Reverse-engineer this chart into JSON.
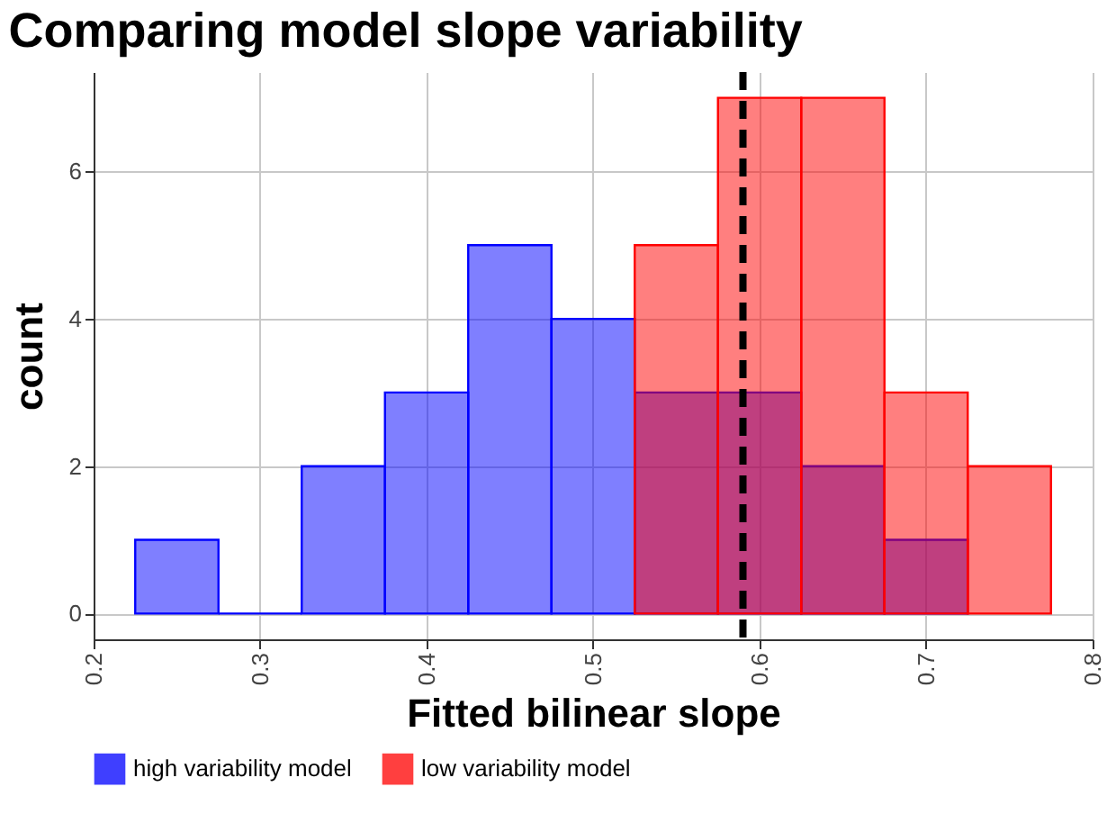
{
  "chart_data": {
    "type": "histogram",
    "title": "Comparing model slope variability",
    "xlabel": "Fitted bilinear slope",
    "ylabel": "count",
    "series": [
      {
        "name": "high variability model",
        "color": "#0000ff",
        "values": [
          1,
          0,
          2,
          3,
          5,
          4,
          3,
          3,
          2,
          1,
          null
        ]
      },
      {
        "name": "low variability model",
        "color": "#ff0000",
        "values": [
          null,
          null,
          null,
          null,
          null,
          null,
          5,
          7,
          7,
          3,
          2
        ]
      }
    ],
    "bins": [
      0.225,
      0.275,
      0.325,
      0.375,
      0.425,
      0.475,
      0.525,
      0.575,
      0.625,
      0.675,
      0.725,
      0.775
    ],
    "xlim": [
      0.2,
      0.8
    ],
    "xticks": [
      0.2,
      0.3,
      0.4,
      0.5,
      0.6,
      0.7,
      0.8
    ],
    "ylim": [
      -0.35,
      7.35
    ],
    "yticks": [
      0,
      2,
      4,
      6
    ],
    "ref_lines": [
      {
        "axis": "x",
        "value": 0.59,
        "color": "#000000",
        "line_style": "dashed"
      }
    ],
    "grid": true,
    "legend": "bottom"
  }
}
